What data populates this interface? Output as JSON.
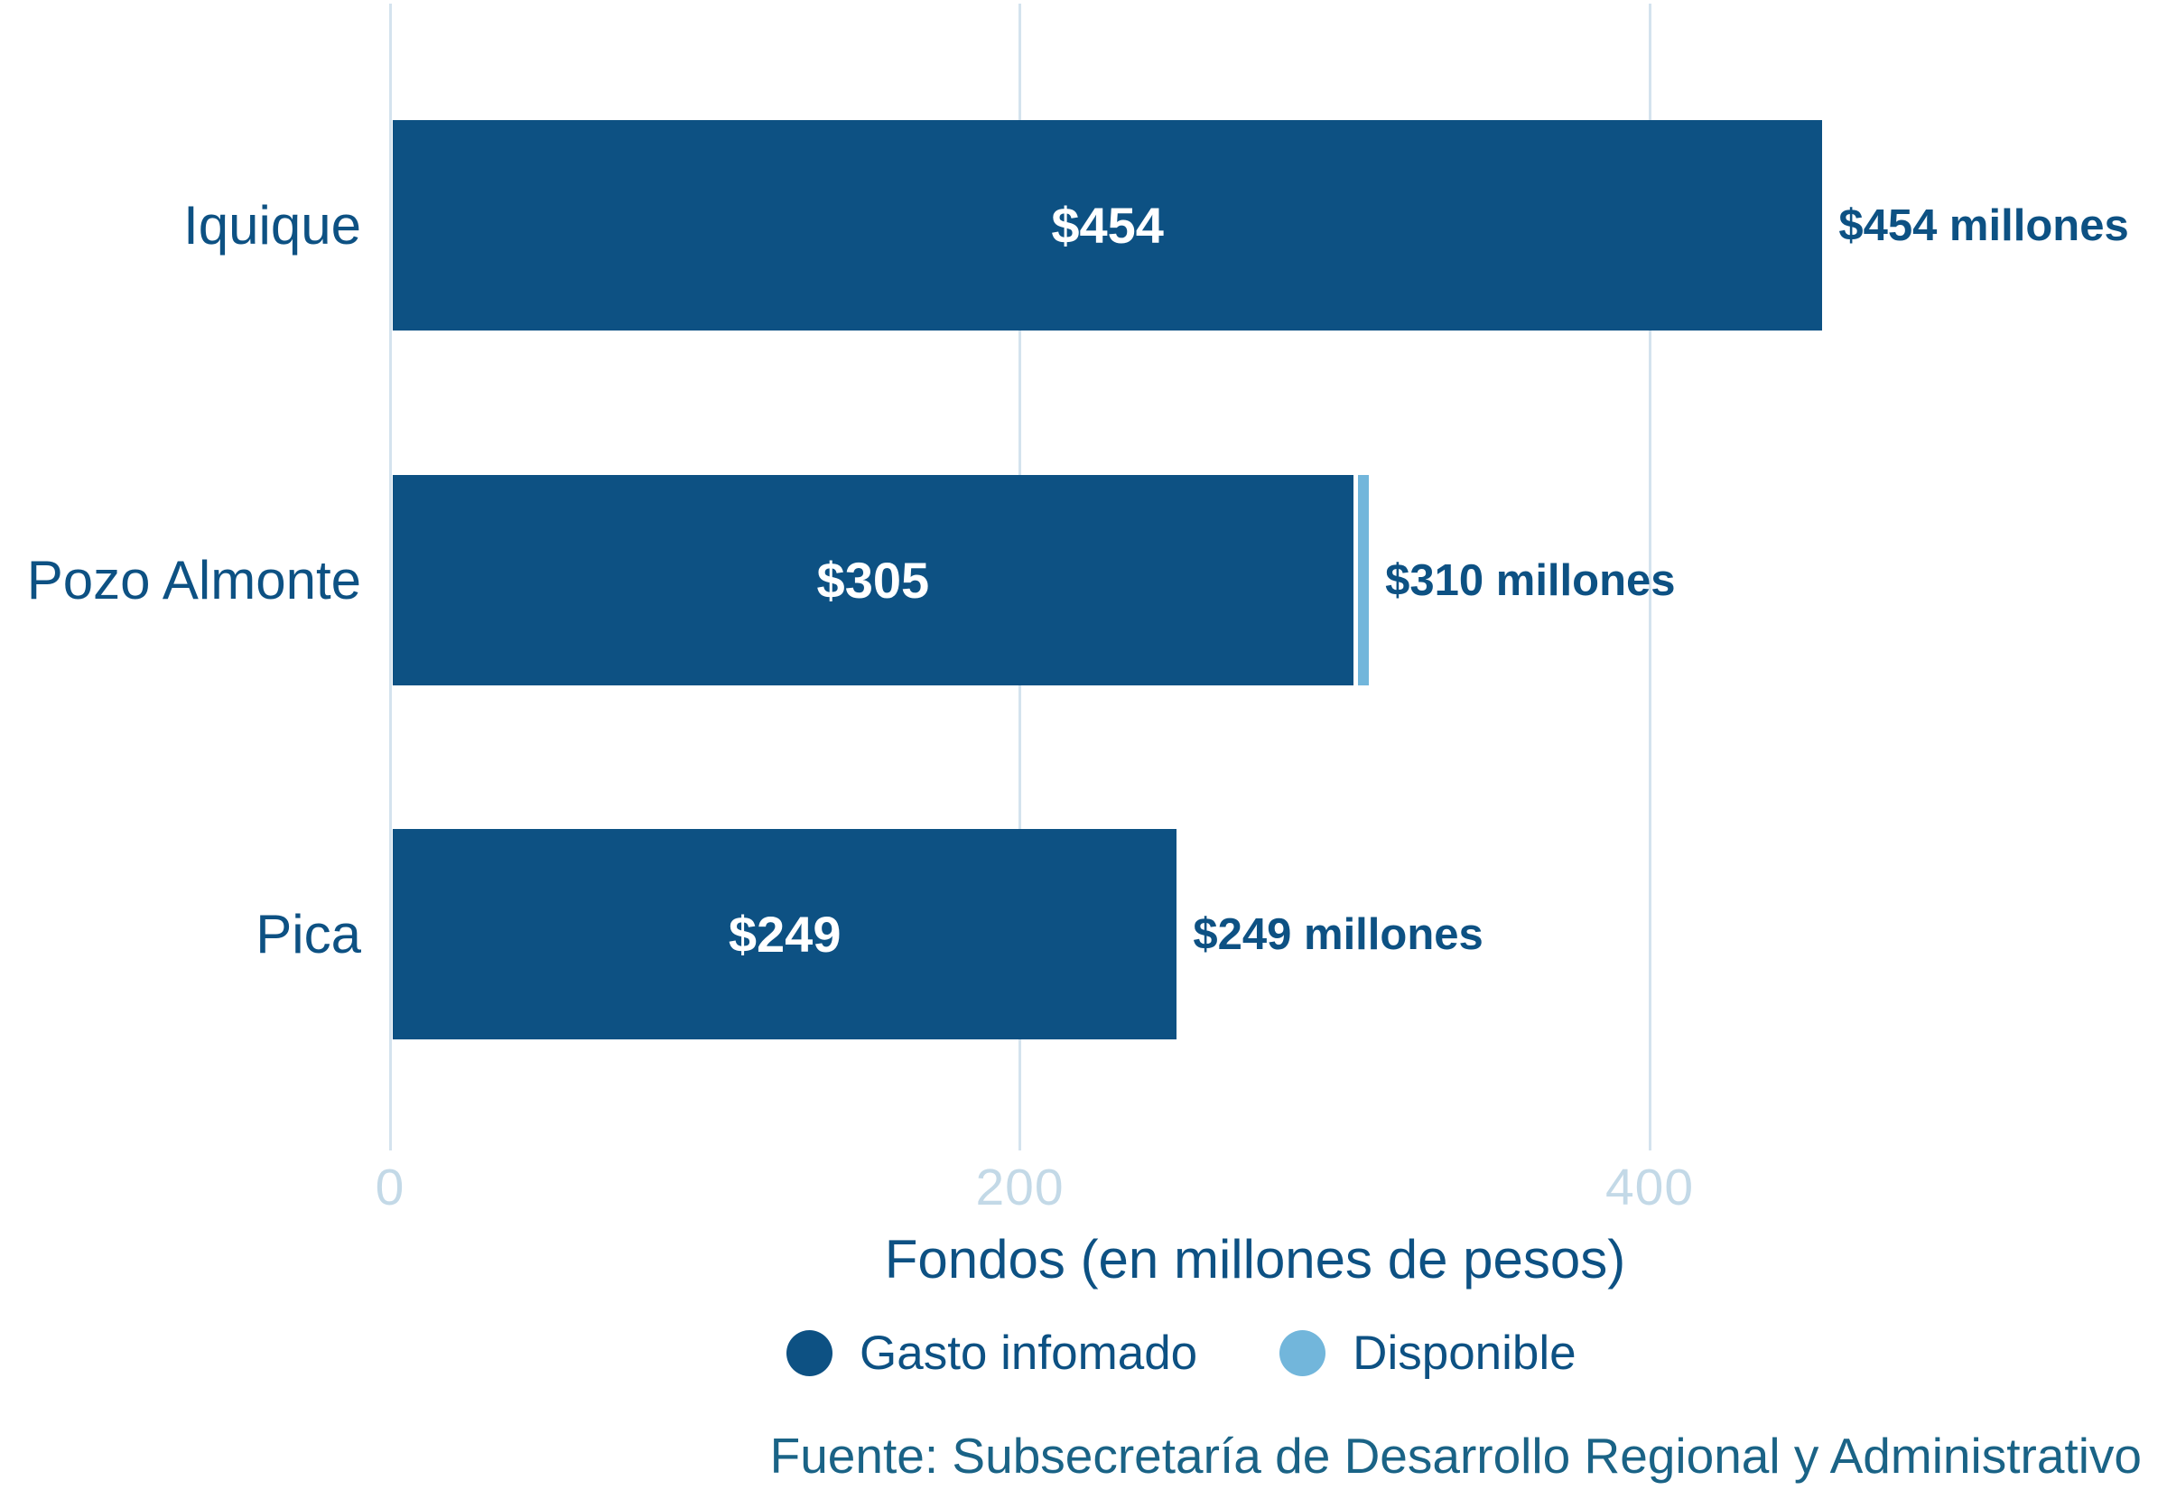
{
  "chart_data": {
    "type": "bar",
    "orientation": "horizontal",
    "title": "",
    "xlabel": "Fondos (en millones de pesos)",
    "categories": [
      "Iquique",
      "Pozo Almonte",
      "Pica"
    ],
    "series": [
      {
        "name": "Gasto infomado",
        "color": "#0d5183",
        "values": [
          454,
          305,
          249
        ]
      },
      {
        "name": "Disponible",
        "color": "#72b6db",
        "values": [
          0,
          5,
          0
        ]
      }
    ],
    "totals": [
      454,
      310,
      249
    ],
    "inside_bar_labels": [
      "$454",
      "$305",
      "$249"
    ],
    "outside_bar_labels": [
      "$454 millones",
      "$310 millones",
      "$249 millones"
    ],
    "x_ticks": [
      0,
      200,
      400
    ],
    "xlim": [
      0,
      560
    ],
    "grid": "vertical-gridlines",
    "legend_position": "bottom-center",
    "source": "Fuente: Subsecretaría de Desarrollo Regional y Administrativo"
  },
  "colors": {
    "bar_primary": "#0d5183",
    "bar_secondary": "#72b6db",
    "gridline": "#d4e3ee",
    "tick_label": "#c3d9e7",
    "text_primary": "#0d5183",
    "source_text": "#1a6386",
    "inside_label": "#ffffff",
    "background": "#ffffff"
  }
}
